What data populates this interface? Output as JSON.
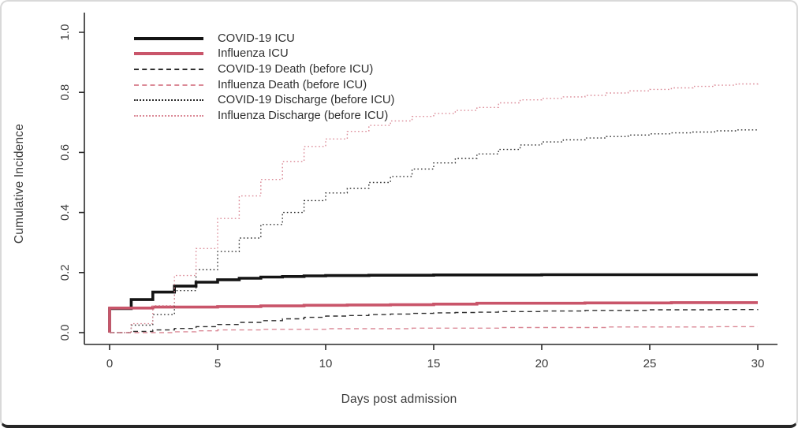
{
  "figure_title": "",
  "chart_data": {
    "type": "line",
    "subtype": "step-cumulative-incidence",
    "title": "",
    "xlabel": "Days post admission",
    "ylabel": "Cumulative Incidence",
    "xlim": [
      0,
      30
    ],
    "ylim": [
      0,
      1.0
    ],
    "xticks": [
      "0",
      "5",
      "10",
      "15",
      "20",
      "25",
      "30"
    ],
    "xtick_values": [
      0,
      5,
      10,
      15,
      20,
      25,
      30
    ],
    "yticks": [
      "0.0",
      "0.2",
      "0.4",
      "0.6",
      "0.8",
      "1.0"
    ],
    "ytick_values": [
      0,
      0.2,
      0.4,
      0.6,
      0.8,
      1.0
    ],
    "grid": false,
    "legend_position": "top-left-inside",
    "colors": {
      "covid_black": "#141414",
      "covid_thin_black": "#2e2e2e",
      "influenza_red": "#c9556a",
      "influenza_light_pink": "#db8a97",
      "axis_text": "#3b3b3b"
    },
    "series": [
      {
        "name": "COVID-19 ICU",
        "color": "#141414",
        "style": "solid",
        "width": "thick",
        "points": [
          [
            0,
            0
          ],
          [
            0,
            0.08
          ],
          [
            1,
            0.11
          ],
          [
            2,
            0.135
          ],
          [
            3,
            0.155
          ],
          [
            4,
            0.168
          ],
          [
            5,
            0.176
          ],
          [
            6,
            0.181
          ],
          [
            7,
            0.185
          ],
          [
            8,
            0.187
          ],
          [
            9,
            0.189
          ],
          [
            10,
            0.19
          ],
          [
            12,
            0.191
          ],
          [
            15,
            0.192
          ],
          [
            20,
            0.193
          ],
          [
            30,
            0.193
          ]
        ]
      },
      {
        "name": "Influenza ICU",
        "color": "#c9556a",
        "style": "solid",
        "width": "thick",
        "points": [
          [
            0,
            0
          ],
          [
            0,
            0.082
          ],
          [
            2,
            0.085
          ],
          [
            5,
            0.087
          ],
          [
            7,
            0.089
          ],
          [
            9,
            0.091
          ],
          [
            11,
            0.092
          ],
          [
            13,
            0.093
          ],
          [
            15,
            0.095
          ],
          [
            17,
            0.098
          ],
          [
            22,
            0.099
          ],
          [
            26,
            0.1
          ],
          [
            30,
            0.1
          ]
        ]
      },
      {
        "name": "COVID-19 Death (before ICU)",
        "color": "#2e2e2e",
        "style": "dashed",
        "width": "thin",
        "points": [
          [
            0,
            0
          ],
          [
            1,
            0.004
          ],
          [
            2,
            0.009
          ],
          [
            3,
            0.014
          ],
          [
            4,
            0.02
          ],
          [
            5,
            0.027
          ],
          [
            6,
            0.034
          ],
          [
            7,
            0.04
          ],
          [
            8,
            0.046
          ],
          [
            9,
            0.051
          ],
          [
            10,
            0.055
          ],
          [
            11,
            0.057
          ],
          [
            12,
            0.06
          ],
          [
            13,
            0.062
          ],
          [
            14,
            0.064
          ],
          [
            15,
            0.066
          ],
          [
            16,
            0.067
          ],
          [
            17,
            0.068
          ],
          [
            18,
            0.07
          ],
          [
            20,
            0.072
          ],
          [
            22,
            0.074
          ],
          [
            25,
            0.076
          ],
          [
            28,
            0.077
          ],
          [
            30,
            0.078
          ]
        ]
      },
      {
        "name": "Influenza Death (before ICU)",
        "color": "#db8a97",
        "style": "dashed",
        "width": "thin",
        "points": [
          [
            0,
            0
          ],
          [
            3,
            0.003
          ],
          [
            4,
            0.006
          ],
          [
            5,
            0.009
          ],
          [
            7,
            0.011
          ],
          [
            10,
            0.013
          ],
          [
            14,
            0.015
          ],
          [
            18,
            0.017
          ],
          [
            23,
            0.019
          ],
          [
            28,
            0.02
          ],
          [
            30,
            0.02
          ]
        ]
      },
      {
        "name": "COVID-19 Discharge (before ICU)",
        "color": "#2e2e2e",
        "style": "dotted",
        "width": "thin",
        "points": [
          [
            0,
            0
          ],
          [
            1,
            0.025
          ],
          [
            2,
            0.06
          ],
          [
            3,
            0.14
          ],
          [
            4,
            0.21
          ],
          [
            5,
            0.27
          ],
          [
            6,
            0.315
          ],
          [
            7,
            0.36
          ],
          [
            8,
            0.4
          ],
          [
            9,
            0.44
          ],
          [
            10,
            0.465
          ],
          [
            11,
            0.48
          ],
          [
            12,
            0.5
          ],
          [
            13,
            0.52
          ],
          [
            14,
            0.545
          ],
          [
            15,
            0.565
          ],
          [
            16,
            0.58
          ],
          [
            17,
            0.595
          ],
          [
            18,
            0.61
          ],
          [
            19,
            0.625
          ],
          [
            20,
            0.635
          ],
          [
            21,
            0.642
          ],
          [
            22,
            0.648
          ],
          [
            23,
            0.653
          ],
          [
            24,
            0.658
          ],
          [
            25,
            0.662
          ],
          [
            26,
            0.665
          ],
          [
            27,
            0.668
          ],
          [
            28,
            0.672
          ],
          [
            29,
            0.675
          ],
          [
            30,
            0.678
          ]
        ]
      },
      {
        "name": "Influenza Discharge (before ICU)",
        "color": "#db8a97",
        "style": "dotted",
        "width": "thin",
        "points": [
          [
            0,
            0
          ],
          [
            1,
            0.03
          ],
          [
            2,
            0.09
          ],
          [
            3,
            0.19
          ],
          [
            4,
            0.28
          ],
          [
            5,
            0.38
          ],
          [
            6,
            0.455
          ],
          [
            7,
            0.51
          ],
          [
            8,
            0.57
          ],
          [
            9,
            0.62
          ],
          [
            10,
            0.645
          ],
          [
            11,
            0.67
          ],
          [
            12,
            0.69
          ],
          [
            13,
            0.705
          ],
          [
            14,
            0.72
          ],
          [
            15,
            0.73
          ],
          [
            16,
            0.74
          ],
          [
            17,
            0.75
          ],
          [
            18,
            0.765
          ],
          [
            19,
            0.775
          ],
          [
            20,
            0.78
          ],
          [
            21,
            0.785
          ],
          [
            22,
            0.79
          ],
          [
            23,
            0.798
          ],
          [
            24,
            0.805
          ],
          [
            25,
            0.81
          ],
          [
            26,
            0.815
          ],
          [
            27,
            0.82
          ],
          [
            28,
            0.824
          ],
          [
            29,
            0.828
          ],
          [
            30,
            0.832
          ]
        ]
      }
    ]
  }
}
